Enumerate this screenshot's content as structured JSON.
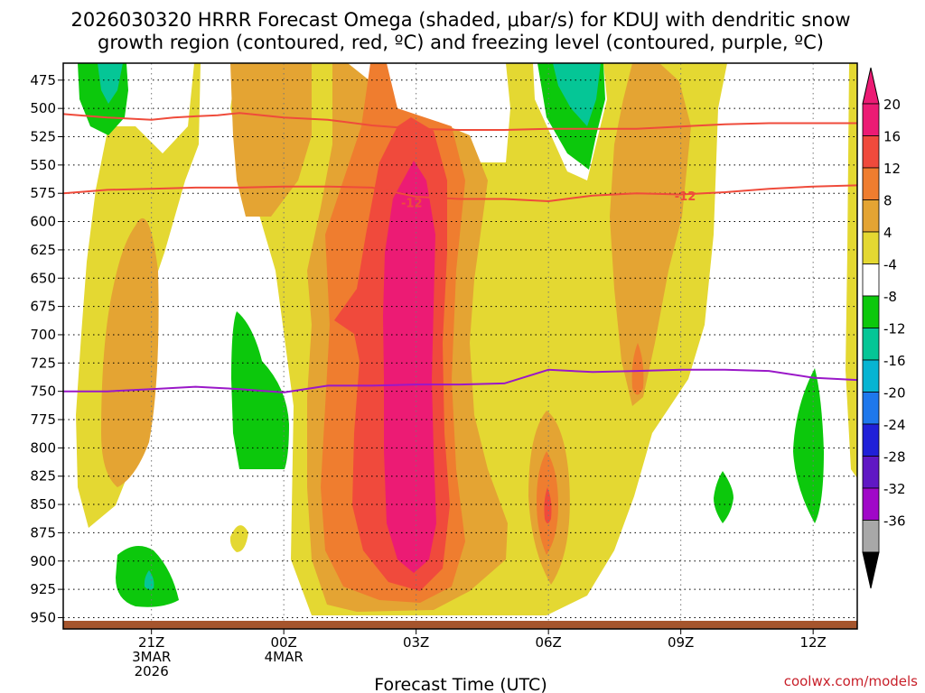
{
  "chart_data": {
    "type": "contour",
    "title_lines": [
      "2026030320 HRRR Forecast Omega (shaded, μbar/s) for KDUJ with dendritic snow",
      "growth region (contoured, red, ºC) and freezing level (contoured, purple, ºC)"
    ],
    "xlabel": "Forecast Time (UTC)",
    "ylabel": "",
    "credit": "coolwx.com/models",
    "x_range_hours": [
      -2,
      16
    ],
    "y_range_mb": [
      460,
      960
    ],
    "y_ticks": [
      475,
      500,
      525,
      550,
      575,
      600,
      625,
      650,
      675,
      700,
      725,
      750,
      775,
      800,
      825,
      850,
      875,
      900,
      925,
      950
    ],
    "x_ticks": [
      {
        "hour": 0,
        "lines": [
          "21Z",
          "3MAR",
          "2026"
        ]
      },
      {
        "hour": 3,
        "lines": [
          "00Z",
          "4MAR"
        ]
      },
      {
        "hour": 6,
        "lines": [
          "03Z"
        ]
      },
      {
        "hour": 9,
        "lines": [
          "06Z"
        ]
      },
      {
        "hour": 12,
        "lines": [
          "09Z"
        ]
      },
      {
        "hour": 15,
        "lines": [
          "12Z"
        ]
      }
    ],
    "colorbar": {
      "labels": [
        "20",
        "16",
        "12",
        "8",
        "4",
        "-4",
        "-8",
        "-12",
        "-16",
        "-20",
        "-24",
        "-28",
        "-32",
        "-36"
      ],
      "colors": [
        "#ec1b74",
        "#f04a3c",
        "#ef7d2f",
        "#e4a433",
        "#e4d832",
        "#ffffff",
        "#0cc80c",
        "#05c696",
        "#06b4d2",
        "#1e78ec",
        "#2020d8",
        "#6018c4",
        "#a008c8",
        "#a8a8a8"
      ],
      "top_arrow_color": "#ec1b74",
      "bottom_arrow_color": "#000000"
    },
    "contour_labels": [
      {
        "text": "-12",
        "hour": 5.9,
        "mb": 584
      },
      {
        "text": "-12",
        "hour": 12.1,
        "mb": 578
      }
    ],
    "dgz_top_line": {
      "color": "#ef4b3b",
      "points": [
        [
          -2,
          505
        ],
        [
          -1,
          508
        ],
        [
          0,
          510
        ],
        [
          0.5,
          508
        ],
        [
          1,
          507
        ],
        [
          1.5,
          506
        ],
        [
          2,
          504
        ],
        [
          2.5,
          506
        ],
        [
          3,
          508
        ],
        [
          4,
          510
        ],
        [
          5,
          515
        ],
        [
          6,
          518
        ],
        [
          7,
          519
        ],
        [
          8,
          519
        ],
        [
          9,
          518
        ],
        [
          10,
          518
        ],
        [
          11,
          518
        ],
        [
          12,
          516
        ],
        [
          13,
          514
        ],
        [
          14,
          513
        ],
        [
          15,
          513
        ],
        [
          16,
          513
        ]
      ]
    },
    "dgz_bottom_line": {
      "color": "#ef4b3b",
      "points": [
        [
          -2,
          575
        ],
        [
          -1,
          572
        ],
        [
          0,
          571
        ],
        [
          1,
          570
        ],
        [
          2,
          570
        ],
        [
          3,
          569
        ],
        [
          4,
          569
        ],
        [
          5,
          570
        ],
        [
          6,
          578
        ],
        [
          7,
          580
        ],
        [
          8,
          580
        ],
        [
          9,
          582
        ],
        [
          10,
          577
        ],
        [
          11,
          575
        ],
        [
          12,
          576
        ],
        [
          13,
          574
        ],
        [
          14,
          571
        ],
        [
          15,
          569
        ],
        [
          16,
          568
        ]
      ]
    },
    "freezing_level_line": {
      "color": "#9a18c8",
      "points": [
        [
          -2,
          750
        ],
        [
          -1,
          750
        ],
        [
          0,
          748
        ],
        [
          1,
          746
        ],
        [
          2,
          748
        ],
        [
          3,
          751
        ],
        [
          4,
          745
        ],
        [
          5,
          745
        ],
        [
          6,
          744
        ],
        [
          7,
          744
        ],
        [
          8,
          743
        ],
        [
          9,
          731
        ],
        [
          10,
          733
        ],
        [
          11,
          732
        ],
        [
          12,
          731
        ],
        [
          13,
          731
        ],
        [
          14,
          732
        ],
        [
          15,
          738
        ],
        [
          16,
          740
        ]
      ]
    },
    "terrain_color": "#a5552d"
  }
}
